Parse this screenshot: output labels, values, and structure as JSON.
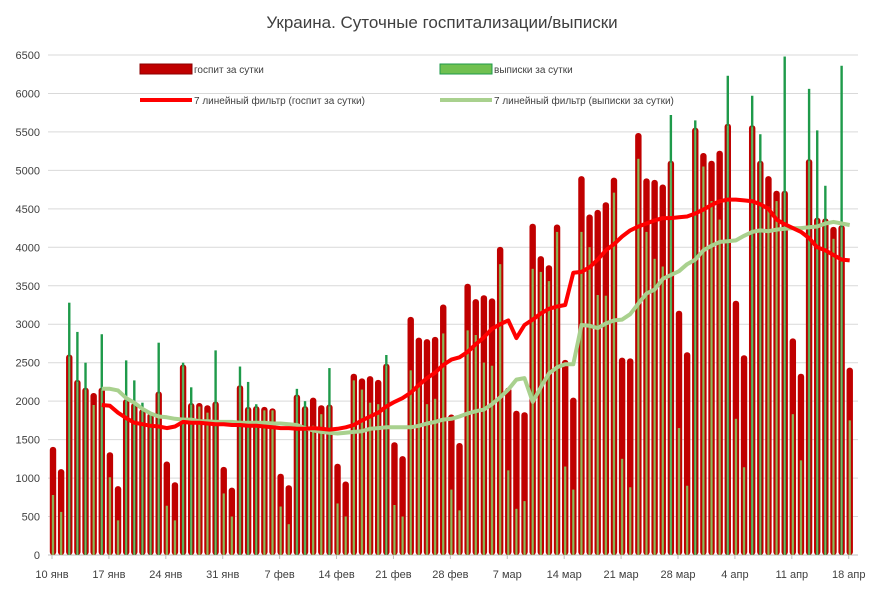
{
  "chart_data": {
    "type": "bar",
    "title": "Украина. Суточные госпитализации/выписки",
    "ylim": [
      0,
      6500
    ],
    "yticks": [
      0,
      500,
      1000,
      1500,
      2000,
      2500,
      3000,
      3500,
      4000,
      4500,
      5000,
      5500,
      6000,
      6500
    ],
    "grid": true,
    "legend_position": "top",
    "x_tick_labels": [
      "10 янв",
      "17 янв",
      "24 янв",
      "31 янв",
      "7 фев",
      "14 фев",
      "21 фев",
      "28 фев",
      "7 мар",
      "14 мар",
      "21 мар",
      "28 мар",
      "4 апр",
      "11 апр",
      "18 апр"
    ],
    "categories": [
      "10 янв",
      "11 янв",
      "12 янв",
      "13 янв",
      "14 янв",
      "15 янв",
      "16 янв",
      "17 янв",
      "18 янв",
      "19 янв",
      "20 янв",
      "21 янв",
      "22 янв",
      "23 янв",
      "24 янв",
      "25 янв",
      "26 янв",
      "27 янв",
      "28 янв",
      "29 янв",
      "30 янв",
      "31 янв",
      "1 фев",
      "2 фев",
      "3 фев",
      "4 фев",
      "5 фев",
      "6 фев",
      "7 фев",
      "8 фев",
      "9 фев",
      "10 фев",
      "11 фев",
      "12 фев",
      "13 фев",
      "14 фев",
      "15 фев",
      "16 фев",
      "17 фев",
      "18 фев",
      "19 фев",
      "20 фев",
      "21 фев",
      "22 фев",
      "23 фев",
      "24 фев",
      "25 фев",
      "26 фев",
      "27 фев",
      "28 фев",
      "1 мар",
      "2 мар",
      "3 мар",
      "4 мар",
      "5 мар",
      "6 мар",
      "7 мар",
      "8 мар",
      "9 мар",
      "10 мар",
      "11 мар",
      "12 мар",
      "13 мар",
      "14 мар",
      "15 мар",
      "16 мар",
      "17 мар",
      "18 мар",
      "19 мар",
      "20 мар",
      "21 мар",
      "22 мар",
      "23 мар",
      "24 мар",
      "25 мар",
      "26 мар",
      "27 мар",
      "28 мар",
      "29 мар",
      "30 мар",
      "31 мар",
      "1 апр",
      "2 апр",
      "3 апр",
      "4 апр",
      "5 апр",
      "6 апр",
      "7 апр",
      "8 апр",
      "9 апр",
      "10 апр",
      "11 апр",
      "12 апр",
      "13 апр",
      "14 апр",
      "15 апр",
      "16 апр",
      "17 апр",
      "18 апр"
    ],
    "series": [
      {
        "name": "госпит за сутки",
        "kind": "bar",
        "color": "#c00000",
        "values": [
          1380,
          1090,
          2580,
          2250,
          2150,
          2080,
          2150,
          1310,
          870,
          2000,
          1950,
          1870,
          1820,
          2100,
          1190,
          920,
          2450,
          1950,
          1950,
          1920,
          1970,
          1120,
          850,
          2180,
          1900,
          1910,
          1900,
          1880,
          1030,
          880,
          2060,
          1910,
          2020,
          1920,
          1930,
          1160,
          930,
          2330,
          2270,
          2300,
          2250,
          2460,
          1440,
          1260,
          3070,
          2800,
          2780,
          2810,
          3230,
          1800,
          1430,
          3500,
          3300,
          3350,
          3310,
          3980,
          2150,
          1850,
          1830,
          4280,
          3860,
          3740,
          4270,
          2510,
          2020,
          4900,
          4400,
          4460,
          4560,
          4880,
          2540,
          2530,
          5460,
          4870,
          4850,
          4790,
          5100,
          3150,
          2610,
          5530,
          5200,
          5100,
          5230,
          5580,
          3280,
          2570,
          5560,
          5100,
          4900,
          4710,
          4710,
          2790,
          2330,
          5120,
          4360,
          4350,
          4240,
          4260,
          2410
        ]
      },
      {
        "name": "выписки за сутки",
        "kind": "bar",
        "color": "#70c050",
        "edge_color": "#1e9a4a",
        "values": [
          780,
          560,
          3280,
          2900,
          2500,
          1950,
          2870,
          1010,
          450,
          2530,
          2270,
          1980,
          1850,
          2760,
          640,
          450,
          2500,
          2180,
          1930,
          1850,
          2660,
          800,
          500,
          2450,
          2250,
          1960,
          1880,
          1880,
          630,
          400,
          2160,
          2000,
          1680,
          1830,
          2430,
          670,
          500,
          2270,
          2150,
          1980,
          1960,
          2600,
          650,
          500,
          2400,
          2220,
          1960,
          2030,
          2880,
          850,
          580,
          2920,
          2860,
          2500,
          2460,
          3780,
          1100,
          600,
          700,
          3720,
          3680,
          3560,
          4200,
          1150,
          850,
          4200,
          4000,
          3380,
          3370,
          4710,
          1250,
          880,
          5150,
          4200,
          3850,
          3750,
          5720,
          1650,
          900,
          5650,
          5050,
          4600,
          4360,
          6230,
          1770,
          1140,
          5970,
          5470,
          4530,
          4600,
          6480,
          1830,
          1230,
          6060,
          5520,
          4800,
          4110,
          6360,
          1750
        ]
      },
      {
        "name": "7 линейный фильтр (госпит за сутки)",
        "kind": "line",
        "color": "#ff0000",
        "values": [
          null,
          null,
          null,
          null,
          null,
          null,
          1950,
          1940,
          1850,
          1780,
          1720,
          1700,
          1680,
          1670,
          1650,
          1670,
          1730,
          1720,
          1720,
          1710,
          1700,
          1700,
          1690,
          1690,
          1680,
          1680,
          1670,
          1660,
          1650,
          1650,
          1640,
          1640,
          1650,
          1640,
          1630,
          1640,
          1660,
          1690,
          1750,
          1800,
          1850,
          1930,
          1990,
          2040,
          2110,
          2210,
          2300,
          2370,
          2470,
          2540,
          2570,
          2640,
          2740,
          2830,
          2940,
          3000,
          3050,
          2820,
          2990,
          3060,
          3140,
          3200,
          3230,
          3250,
          3670,
          3680,
          3740,
          3840,
          3960,
          4040,
          4140,
          4220,
          4270,
          4310,
          4350,
          4380,
          4380,
          4390,
          4400,
          4440,
          4490,
          4550,
          4600,
          4620,
          4620,
          4610,
          4600,
          4560,
          4500,
          4360,
          4300,
          4250,
          4200,
          4120,
          4000,
          3960,
          3900,
          3840,
          3830
        ]
      },
      {
        "name": "7 линейный фильтр (выписки за сутки)",
        "kind": "line",
        "color": "#a9d18e",
        "values": [
          null,
          null,
          null,
          null,
          null,
          null,
          2160,
          2160,
          2140,
          2040,
          1980,
          1900,
          1840,
          1800,
          1790,
          1770,
          1760,
          1760,
          1740,
          1740,
          1730,
          1730,
          1730,
          1720,
          1720,
          1720,
          1720,
          1710,
          1710,
          1700,
          1690,
          1650,
          1620,
          1600,
          1590,
          1580,
          1590,
          1600,
          1610,
          1640,
          1650,
          1660,
          1660,
          1660,
          1660,
          1680,
          1710,
          1730,
          1760,
          1770,
          1800,
          1840,
          1870,
          1890,
          1960,
          2050,
          2150,
          2280,
          2300,
          1990,
          2180,
          2360,
          2440,
          2480,
          2480,
          2990,
          2980,
          2950,
          3010,
          3050,
          3060,
          3130,
          3270,
          3400,
          3450,
          3590,
          3640,
          3690,
          3780,
          3840,
          3960,
          4020,
          4070,
          4080,
          4090,
          4150,
          4200,
          4220,
          4210,
          4230,
          4240,
          4250,
          4250,
          4260,
          4270,
          4310,
          4330,
          4310,
          4290
        ]
      }
    ]
  }
}
